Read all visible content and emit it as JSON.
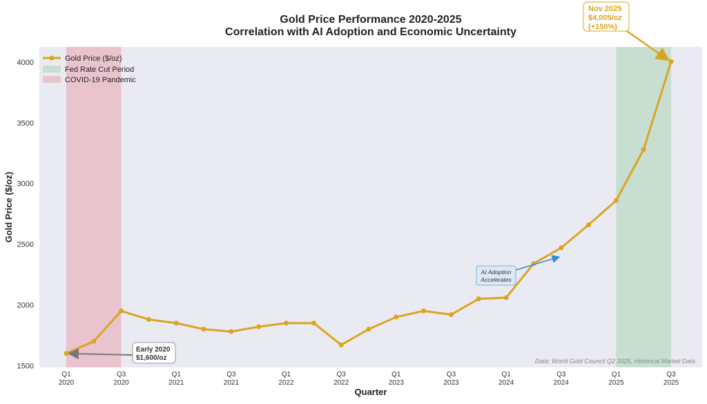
{
  "chart_data": {
    "type": "line",
    "title": "Gold Price Performance 2020-2025",
    "subtitle": "Correlation with AI Adoption and Economic Uncertainty",
    "xlabel": "Quarter",
    "ylabel": "Gold Price ($/oz)",
    "ylim": [
      1485,
      4125
    ],
    "yticks": [
      1500,
      2000,
      2500,
      3000,
      3500,
      4000
    ],
    "grid": false,
    "legend_placement": "top-left",
    "quarters": [
      "Q1 2020",
      "Q2 2020",
      "Q3 2020",
      "Q4 2020",
      "Q1 2021",
      "Q2 2021",
      "Q3 2021",
      "Q4 2021",
      "Q1 2022",
      "Q2 2022",
      "Q3 2022",
      "Q4 2022",
      "Q1 2023",
      "Q2 2023",
      "Q3 2023",
      "Q4 2023",
      "Q1 2024",
      "Q2 2024",
      "Q3 2024",
      "Q4 2024",
      "Q1 2025",
      "Q2 2025",
      "Q3 2025"
    ],
    "xticks": [
      {
        "q": "Q1",
        "y": "2020"
      },
      {
        "q": "Q3",
        "y": "2020"
      },
      {
        "q": "Q1",
        "y": "2021"
      },
      {
        "q": "Q3",
        "y": "2021"
      },
      {
        "q": "Q1",
        "y": "2022"
      },
      {
        "q": "Q3",
        "y": "2022"
      },
      {
        "q": "Q1",
        "y": "2023"
      },
      {
        "q": "Q3",
        "y": "2023"
      },
      {
        "q": "Q1",
        "y": "2024"
      },
      {
        "q": "Q3",
        "y": "2024"
      },
      {
        "q": "Q1",
        "y": "2025"
      },
      {
        "q": "Q3",
        "y": "2025"
      }
    ],
    "series": [
      {
        "name": "Gold Price ($/oz)",
        "color": "#DAA520",
        "values": [
          1600,
          1700,
          1950,
          1880,
          1850,
          1800,
          1780,
          1820,
          1850,
          1850,
          1670,
          1800,
          1900,
          1950,
          1920,
          2050,
          2060,
          2340,
          2470,
          2660,
          2860,
          3280,
          4005
        ]
      }
    ],
    "shaded_regions": [
      {
        "name": "COVID-19 Pandemic",
        "from": "Q1 2020",
        "to": "Q3 2020",
        "color": "#e8b4bf"
      },
      {
        "name": "Fed Rate Cut Period",
        "from": "Q1 2025",
        "to": "Q3 2025",
        "color": "#b9d8c2"
      }
    ],
    "annotations": [
      {
        "lines": [
          "Nov 2025",
          "$4,005/oz",
          "(+150%)"
        ],
        "target": "Q3 2025",
        "color": "#DAA520"
      },
      {
        "lines": [
          "Early 2020",
          "$1,600/oz"
        ],
        "target": "Q1 2020",
        "color": "#333333"
      },
      {
        "lines": [
          "AI Adoption",
          "Accelerates"
        ],
        "color": "#2f8ad8"
      }
    ],
    "source_note": "Data: World Gold Council Q2 2025, Historical Market Data"
  }
}
